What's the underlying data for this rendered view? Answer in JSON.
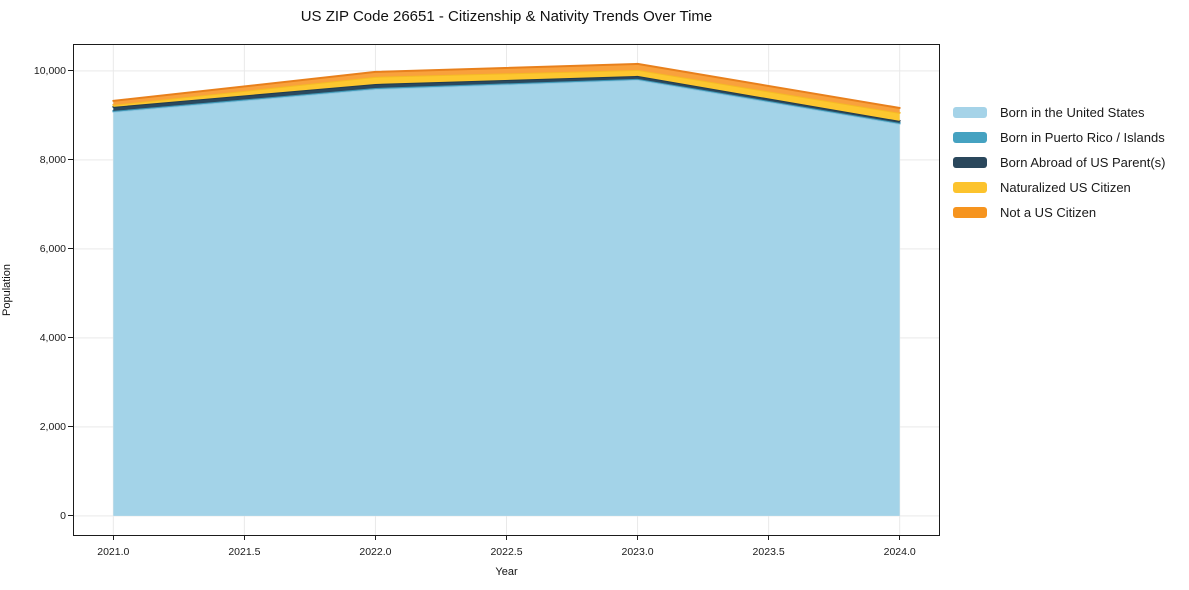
{
  "figure": {
    "title": "US ZIP Code 26651 - Citizenship & Nativity Trends Over Time"
  },
  "axes": {
    "x": {
      "label": "Year",
      "tick_labels": [
        "2021.0",
        "2021.5",
        "2022.0",
        "2022.5",
        "2023.0",
        "2023.5",
        "2024.0"
      ]
    },
    "y": {
      "label": "Population",
      "tick_labels": [
        "0",
        "2,000",
        "4,000",
        "6,000",
        "8,000",
        "10,000"
      ]
    }
  },
  "legend": {
    "position": "right-outside",
    "items": [
      {
        "label": "Born in the United States",
        "color": "#a5d3e8"
      },
      {
        "label": "Born in Puerto Rico / Islands",
        "color": "#45a2c1"
      },
      {
        "label": "Born Abroad of US Parent(s)",
        "color": "#2a475c"
      },
      {
        "label": "Naturalized US Citizen",
        "color": "#fcc32d"
      },
      {
        "label": "Not a US Citizen",
        "color": "#f6941e"
      }
    ]
  },
  "chart_data": {
    "type": "area",
    "stacked": true,
    "title": "US ZIP Code 26651 - Citizenship & Nativity Trends Over Time",
    "xlabel": "Year",
    "ylabel": "Population",
    "grid": true,
    "legend_position": "right-outside",
    "x": [
      2021,
      2022,
      2023,
      2024
    ],
    "xlim": [
      2020.85,
      2024.15
    ],
    "ylim": [
      -430,
      10580
    ],
    "y_tick_values": [
      0,
      2000,
      4000,
      6000,
      8000,
      10000
    ],
    "series": [
      {
        "name": "Born in the United States",
        "values": [
          9080,
          9590,
          9800,
          8810
        ],
        "fill_color": "#a3d3e8",
        "line_color": "#8fc6e0"
      },
      {
        "name": "Born in Puerto Rico / Islands",
        "values": [
          20,
          25,
          20,
          20
        ],
        "fill_color": "#4aa5c4",
        "line_color": "#3f97b5"
      },
      {
        "name": "Born Abroad of US Parent(s)",
        "values": [
          90,
          90,
          65,
          45
        ],
        "fill_color": "#2a485e",
        "line_color": "#223c4e"
      },
      {
        "name": "Naturalized US Citizen",
        "values": [
          45,
          160,
          135,
          180
        ],
        "fill_color": "#fdc72f",
        "line_color": "#f5ba25"
      },
      {
        "name": "Not a US Citizen",
        "values": [
          90,
          110,
          135,
          110
        ],
        "fill_color": "#f9a13c",
        "line_color": "#e8801c"
      }
    ],
    "totals": [
      9325,
      9975,
      10155,
      9165
    ]
  }
}
